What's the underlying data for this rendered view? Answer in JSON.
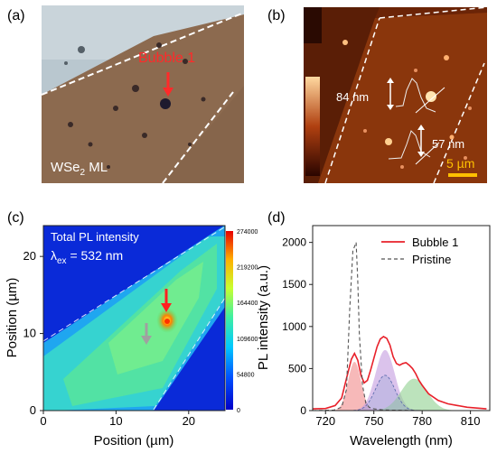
{
  "panels": {
    "a": {
      "label": "(a)",
      "annotation": "Bubble 1",
      "sample_base": "WSe",
      "sample_sub": "2",
      "sample_suffix": " ML",
      "colors": {
        "flake": "#8c6a4f",
        "substrate": "#b9c7cf",
        "annotation": "#ff2a2a"
      }
    },
    "b": {
      "label": "(b)",
      "height_1": "84 nm",
      "height_2": "57 nm",
      "scalebar": "5 µm",
      "colors": {
        "scalebar": "#ffc000",
        "background": "#7a2a08"
      }
    },
    "c": {
      "label": "(c)",
      "title": "Total PL intensity",
      "lambda_symbol": "λ",
      "lambda_sub": "ex",
      "lambda_value": " = 532 nm",
      "xlabel": "Position (µm)",
      "ylabel": "Position (µm)",
      "xticks": [
        "0",
        "10",
        "20"
      ],
      "yticks": [
        "0",
        "10",
        "20"
      ],
      "colorbar_ticks": [
        "274000",
        "219200",
        "164400",
        "109600",
        "54800",
        "0"
      ]
    },
    "d": {
      "label": "(d)",
      "xlabel": "Wavelength (nm)",
      "ylabel": "PL intensity (a.u.)",
      "xticks": [
        "720",
        "750",
        "780",
        "810"
      ],
      "yticks": [
        "0",
        "500",
        "1000",
        "1500",
        "2000"
      ],
      "legend": [
        {
          "name": "Bubble 1",
          "color": "#e8202a",
          "style": "solid"
        },
        {
          "name": "Pristine",
          "color": "#555555",
          "style": "dashed"
        }
      ]
    }
  },
  "chart_data": [
    {
      "type": "heatmap",
      "title": "Total PL intensity",
      "xlabel": "Position (µm)",
      "ylabel": "Position (µm)",
      "xlim": [
        0,
        25
      ],
      "ylim": [
        0,
        24
      ],
      "colorbar_range": [
        0,
        274000
      ]
    },
    {
      "type": "line",
      "xlabel": "Wavelength (nm)",
      "ylabel": "PL intensity (a.u.)",
      "xlim": [
        712,
        822
      ],
      "ylim": [
        0,
        2200
      ],
      "legend_position": "top-right",
      "series": [
        {
          "name": "Bubble 1",
          "color": "#e8202a",
          "x": [
            712,
            720,
            726,
            730,
            733,
            736,
            738,
            740,
            742,
            744,
            746,
            748,
            750,
            752,
            754,
            756,
            758,
            760,
            762,
            764,
            766,
            768,
            770,
            772,
            774,
            776,
            778,
            780,
            784,
            790,
            796,
            802,
            808,
            814,
            820
          ],
          "y": [
            20,
            25,
            60,
            150,
            380,
            610,
            680,
            600,
            420,
            330,
            360,
            480,
            620,
            760,
            850,
            880,
            860,
            780,
            640,
            560,
            540,
            560,
            570,
            540,
            500,
            440,
            360,
            300,
            200,
            120,
            80,
            60,
            40,
            30,
            20
          ]
        },
        {
          "name": "Pristine",
          "color": "#555555",
          "x": [
            712,
            725,
            730,
            733,
            735,
            737,
            739,
            740,
            741,
            743,
            745,
            747,
            750,
            755,
            760,
            770,
            780,
            800,
            822
          ],
          "y": [
            0,
            5,
            40,
            250,
            1200,
            1900,
            2000,
            1550,
            900,
            300,
            90,
            40,
            20,
            10,
            5,
            3,
            0,
            0,
            0
          ]
        }
      ],
      "fitted_peaks": [
        {
          "center": 738,
          "height": 580,
          "color": "#f28a8a"
        },
        {
          "center": 757,
          "height": 720,
          "color": "#c39be0"
        },
        {
          "center": 775,
          "height": 380,
          "color": "#8fd08f"
        },
        {
          "center": 757,
          "height": 420,
          "color": "#9aa7d8"
        }
      ]
    }
  ]
}
